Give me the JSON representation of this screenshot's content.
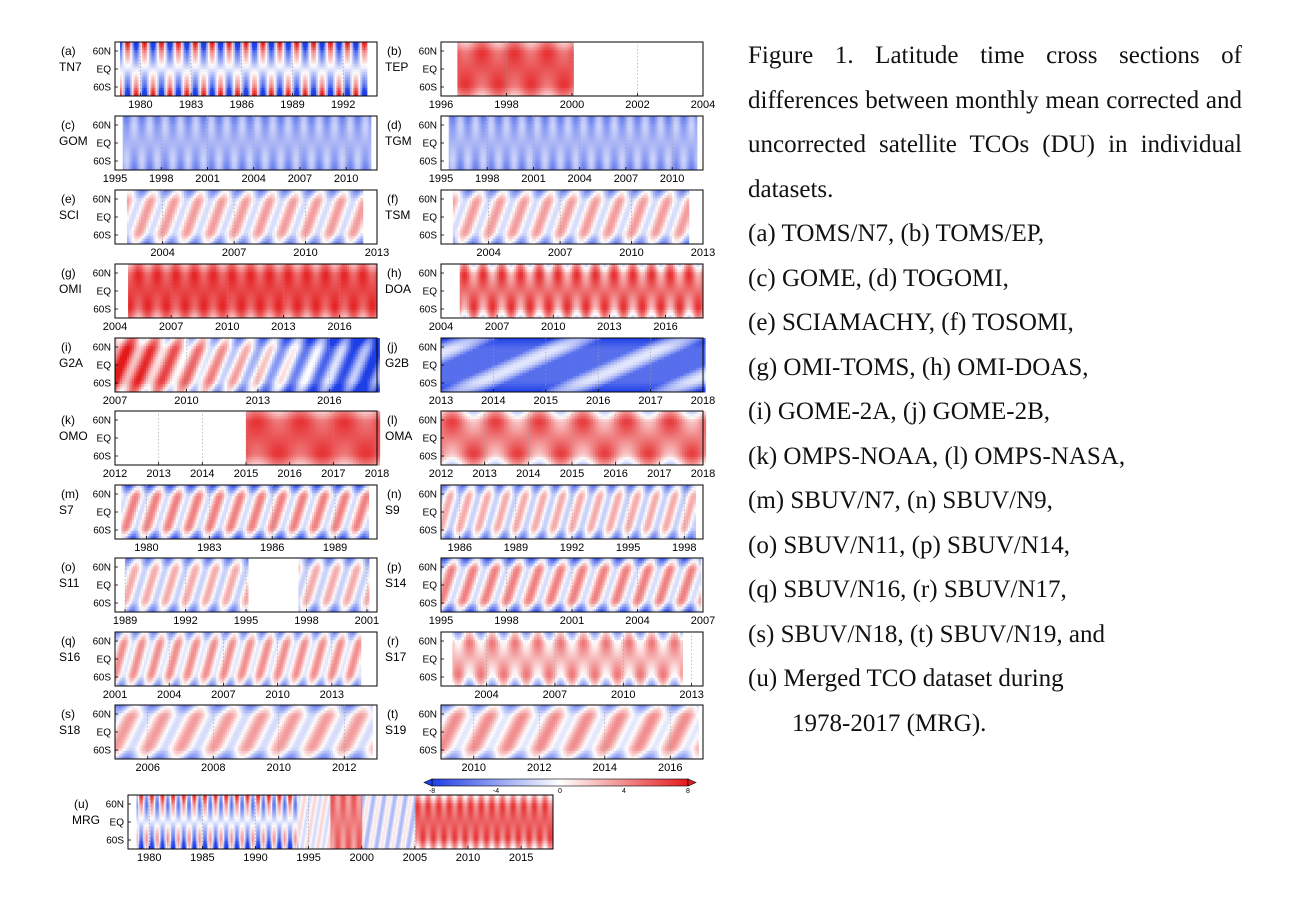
{
  "caption": {
    "title": "Figure 1. Latitude time cross sections of differences between monthly mean corrected and uncorrected satellite TCOs (DU) in individual datasets.",
    "items": [
      "(a) TOMS/N7, (b) TOMS/EP,",
      "(c) GOME, (d) TOGOMI,",
      "(e) SCIAMACHY, (f) TOSOMI,",
      "(g) OMI-TOMS, (h) OMI-DOAS,",
      "(i) GOME-2A, (j) GOME-2B,",
      "(k) OMPS-NOAA, (l) OMPS-NASA,",
      "(m) SBUV/N7, (n) SBUV/N9,",
      "(o) SBUV/N11, (p) SBUV/N14,",
      "(q) SBUV/N16, (r) SBUV/N17,",
      "(s) SBUV/N18, (t) SBUV/N19, and",
      "(u) Merged TCO dataset during"
    ],
    "last_line": "1978-2017 (MRG)."
  },
  "colors": {
    "negative": "#1f3fe6",
    "zero": "#ffffff",
    "positive": "#e31a1c"
  },
  "chart_data": {
    "type": "heatmap",
    "y_ticks": [
      "60N",
      "EQ",
      "60S"
    ],
    "ylim": [
      -90,
      90
    ],
    "colorbar": {
      "ticks": [
        -8,
        -4,
        0,
        4,
        8
      ],
      "range": [
        -8,
        8
      ]
    },
    "panels": [
      {
        "label": "(a)",
        "name": "TN7",
        "xlim": [
          1978.5,
          1994
        ],
        "data_range": [
          1978.8,
          1993.3
        ],
        "xticks": [
          1980,
          1983,
          1986,
          1989,
          1992
        ],
        "pattern": "seasonal-strong",
        "mean": 0,
        "amp": 5
      },
      {
        "label": "(b)",
        "name": "TEP",
        "xlim": [
          1996,
          2004
        ],
        "data_range": [
          1996.5,
          2000
        ],
        "xticks": [
          1996,
          1998,
          2000,
          2002,
          2004
        ],
        "pattern": "positive",
        "mean": 6,
        "amp": 1.5
      },
      {
        "label": "(c)",
        "name": "GOM",
        "xlim": [
          1995,
          2012
        ],
        "data_range": [
          1995.5,
          2011.5
        ],
        "xticks": [
          1995,
          1998,
          2001,
          2004,
          2007,
          2010
        ],
        "pattern": "seasonal-negative",
        "mean": -3,
        "amp": 2
      },
      {
        "label": "(d)",
        "name": "TGM",
        "xlim": [
          1995,
          2012
        ],
        "data_range": [
          1995.5,
          2011.5
        ],
        "xticks": [
          1995,
          1998,
          2001,
          2004,
          2007,
          2010
        ],
        "pattern": "seasonal-negative",
        "mean": -3,
        "amp": 2
      },
      {
        "label": "(e)",
        "name": "SCI",
        "xlim": [
          2002,
          2013
        ],
        "data_range": [
          2002.5,
          2012.3
        ],
        "xticks": [
          2004,
          2007,
          2010,
          2013
        ],
        "pattern": "weak-wave",
        "mean": 1,
        "amp": 2
      },
      {
        "label": "(f)",
        "name": "TSM",
        "xlim": [
          2002,
          2013
        ],
        "data_range": [
          2002.5,
          2012.3
        ],
        "xticks": [
          2004,
          2007,
          2010,
          2013
        ],
        "pattern": "weak-wave",
        "mean": 1,
        "amp": 2
      },
      {
        "label": "(g)",
        "name": "OMI",
        "xlim": [
          2004,
          2018
        ],
        "data_range": [
          2004.7,
          2017.9
        ],
        "xticks": [
          2004,
          2007,
          2010,
          2013,
          2016
        ],
        "pattern": "positive",
        "mean": 6.5,
        "amp": 1.5
      },
      {
        "label": "(h)",
        "name": "DOA",
        "xlim": [
          2004,
          2018
        ],
        "data_range": [
          2005,
          2017.9
        ],
        "xticks": [
          2004,
          2007,
          2010,
          2013,
          2016
        ],
        "pattern": "positive-wave",
        "mean": 5,
        "amp": 2
      },
      {
        "label": "(i)",
        "name": "G2A",
        "xlim": [
          2007,
          2018
        ],
        "data_range": [
          2007,
          2018
        ],
        "xticks": [
          2007,
          2010,
          2013,
          2016
        ],
        "pattern": "trend-pos-neg",
        "mean": 0,
        "amp": 6
      },
      {
        "label": "(j)",
        "name": "G2B",
        "xlim": [
          2013,
          2018
        ],
        "data_range": [
          2013,
          2018
        ],
        "xticks": [
          2013,
          2014,
          2015,
          2016,
          2017,
          2018
        ],
        "pattern": "negative-wave",
        "mean": -5,
        "amp": 4
      },
      {
        "label": "(k)",
        "name": "OMO",
        "xlim": [
          2012,
          2018
        ],
        "data_range": [
          2015,
          2018
        ],
        "xticks": [
          2012,
          2013,
          2014,
          2015,
          2016,
          2017,
          2018
        ],
        "pattern": "positive",
        "mean": 6,
        "amp": 1.5
      },
      {
        "label": "(l)",
        "name": "OMA",
        "xlim": [
          2012,
          2018
        ],
        "data_range": [
          2012,
          2018
        ],
        "xticks": [
          2012,
          2013,
          2014,
          2015,
          2016,
          2017,
          2018
        ],
        "pattern": "positive-wave",
        "mean": 4.5,
        "amp": 2
      },
      {
        "label": "(m)",
        "name": "S7",
        "xlim": [
          1978.5,
          1991
        ],
        "data_range": [
          1978.8,
          1990.5
        ],
        "xticks": [
          1980,
          1983,
          1986,
          1989
        ],
        "pattern": "mixed-wave",
        "mean": 0,
        "amp": 3
      },
      {
        "label": "(n)",
        "name": "S9",
        "xlim": [
          1985,
          1999
        ],
        "data_range": [
          1985,
          1998.5
        ],
        "xticks": [
          1986,
          1989,
          1992,
          1995,
          1998
        ],
        "pattern": "weak-wave",
        "mean": 0.5,
        "amp": 2
      },
      {
        "label": "(o)",
        "name": "S11",
        "xlim": [
          1988.5,
          2001.5
        ],
        "data_range": [
          1989,
          2001
        ],
        "gap": [
          1995,
          1997.5
        ],
        "xticks": [
          1989,
          1992,
          1995,
          1998,
          2001
        ],
        "pattern": "weak-wave",
        "mean": 0.5,
        "amp": 2
      },
      {
        "label": "(p)",
        "name": "S14",
        "xlim": [
          1995,
          2007
        ],
        "data_range": [
          1995,
          2006.8
        ],
        "xticks": [
          1995,
          1998,
          2001,
          2004,
          2007
        ],
        "pattern": "mixed-wave",
        "mean": 0,
        "amp": 3
      },
      {
        "label": "(q)",
        "name": "S16",
        "xlim": [
          2001,
          2015.5
        ],
        "data_range": [
          2001,
          2014.5
        ],
        "xticks": [
          2001,
          2004,
          2007,
          2010,
          2013
        ],
        "pattern": "weak-wave",
        "mean": 1.5,
        "amp": 2
      },
      {
        "label": "(r)",
        "name": "S17",
        "xlim": [
          2002,
          2013.5
        ],
        "data_range": [
          2002.5,
          2012.5
        ],
        "xticks": [
          2004,
          2007,
          2010,
          2013
        ],
        "pattern": "positive-wave",
        "mean": 2.5,
        "amp": 2
      },
      {
        "label": "(s)",
        "name": "S18",
        "xlim": [
          2005,
          2013
        ],
        "data_range": [
          2005,
          2012.8
        ],
        "xticks": [
          2006,
          2008,
          2010,
          2012
        ],
        "pattern": "weak-wave",
        "mean": 1,
        "amp": 2
      },
      {
        "label": "(t)",
        "name": "S19",
        "xlim": [
          2009,
          2017
        ],
        "data_range": [
          2009,
          2016.8
        ],
        "xticks": [
          2010,
          2012,
          2014,
          2016
        ],
        "pattern": "weak-wave",
        "mean": 1.5,
        "amp": 2
      },
      {
        "label": "(u)",
        "name": "MRG",
        "xlim": [
          1978,
          2018
        ],
        "data_range": [
          1978.8,
          2017.9
        ],
        "xticks": [
          1980,
          1985,
          1990,
          1995,
          2000,
          2005,
          2010,
          2015
        ],
        "pattern": "merged",
        "mean": 0,
        "amp": 4
      }
    ]
  }
}
